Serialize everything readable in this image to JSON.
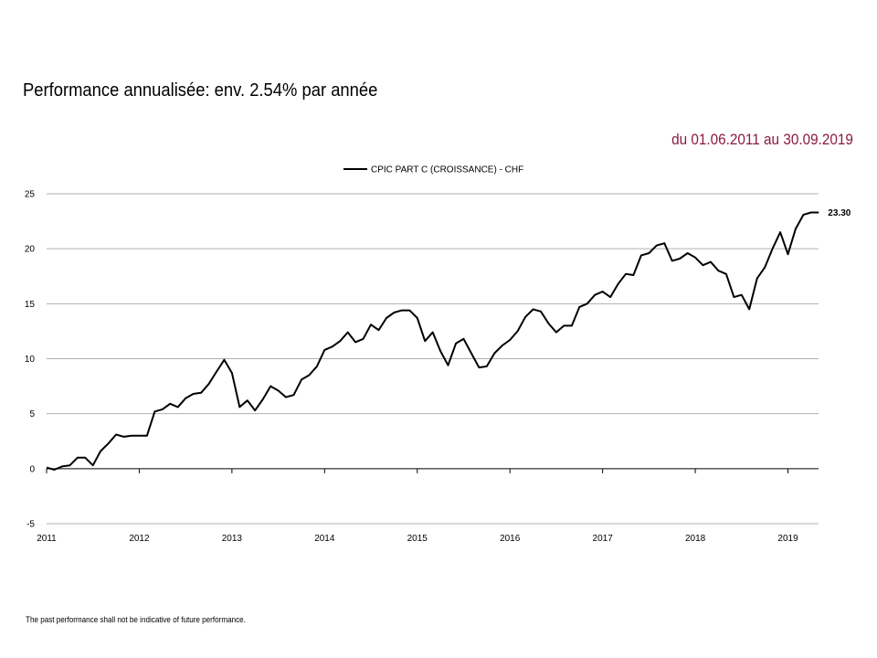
{
  "header": {
    "title": "Performance annualisée: env. 2.54% par année",
    "period": "du 01.06.2011 au 30.09.2019"
  },
  "footer": {
    "disclaimer": "The past performance shall not be indicative of future performance."
  },
  "colors": {
    "period_text": "#8b1a3c",
    "series_line": "#000000",
    "gridline": "#b0b0b0"
  },
  "chart_data": {
    "type": "line",
    "title": "",
    "xlabel": "",
    "ylabel": "",
    "legend": {
      "placement": "top-center",
      "entries": [
        "CPIC PART C (CROISSANCE) - CHF"
      ]
    },
    "ylim": [
      -5,
      25
    ],
    "yticks": [
      "-5",
      "0",
      "5",
      "10",
      "15",
      "20",
      "25"
    ],
    "xlim": [
      2011.0,
      2019.33
    ],
    "xticks": [
      "2011",
      "2012",
      "2013",
      "2014",
      "2015",
      "2016",
      "2017",
      "2018",
      "2019"
    ],
    "grid": "horizontal",
    "end_label": "23.30",
    "series": [
      {
        "name": "CPIC PART C (CROISSANCE) - CHF",
        "x": [
          2011.0,
          2011.083,
          2011.167,
          2011.25,
          2011.333,
          2011.417,
          2011.5,
          2011.583,
          2011.667,
          2011.75,
          2011.833,
          2011.917,
          2012.0,
          2012.083,
          2012.167,
          2012.25,
          2012.333,
          2012.417,
          2012.5,
          2012.583,
          2012.667,
          2012.75,
          2012.833,
          2012.917,
          2013.0,
          2013.083,
          2013.167,
          2013.25,
          2013.333,
          2013.417,
          2013.5,
          2013.583,
          2013.667,
          2013.75,
          2013.833,
          2013.917,
          2014.0,
          2014.083,
          2014.167,
          2014.25,
          2014.333,
          2014.417,
          2014.5,
          2014.583,
          2014.667,
          2014.75,
          2014.833,
          2014.917,
          2015.0,
          2015.083,
          2015.167,
          2015.25,
          2015.333,
          2015.417,
          2015.5,
          2015.583,
          2015.667,
          2015.75,
          2015.833,
          2015.917,
          2016.0,
          2016.083,
          2016.167,
          2016.25,
          2016.333,
          2016.417,
          2016.5,
          2016.583,
          2016.667,
          2016.75,
          2016.833,
          2016.917,
          2017.0,
          2017.083,
          2017.167,
          2017.25,
          2017.333,
          2017.417,
          2017.5,
          2017.583,
          2017.667,
          2017.75,
          2017.833,
          2017.917,
          2018.0,
          2018.083,
          2018.167,
          2018.25,
          2018.333,
          2018.417,
          2018.5,
          2018.583,
          2018.667,
          2018.75,
          2018.833,
          2018.917,
          2019.0,
          2019.083,
          2019.167,
          2019.25,
          2019.333
        ],
        "values": [
          0.1,
          -0.1,
          0.2,
          0.3,
          1.0,
          1.0,
          0.3,
          1.6,
          2.3,
          3.1,
          2.9,
          3.0,
          3.0,
          3.0,
          5.2,
          5.4,
          5.9,
          5.6,
          6.4,
          6.8,
          6.9,
          7.7,
          8.8,
          9.9,
          8.7,
          5.6,
          6.2,
          5.3,
          6.3,
          7.5,
          7.1,
          6.5,
          6.7,
          8.1,
          8.5,
          9.3,
          10.8,
          11.1,
          11.6,
          12.4,
          11.5,
          11.8,
          13.1,
          12.6,
          13.7,
          14.2,
          14.4,
          14.4,
          13.7,
          11.6,
          12.4,
          10.7,
          9.4,
          11.4,
          11.8,
          10.5,
          9.2,
          9.3,
          10.5,
          11.2,
          11.7,
          12.5,
          13.8,
          14.5,
          14.3,
          13.2,
          12.4,
          13.0,
          13.0,
          14.7,
          15.0,
          15.8,
          16.1,
          15.6,
          16.8,
          17.7,
          17.6,
          19.4,
          19.6,
          20.3,
          20.5,
          18.9,
          19.1,
          19.6,
          19.2,
          18.5,
          18.8,
          18.0,
          17.7,
          15.6,
          15.8,
          14.5,
          17.3,
          18.3,
          20.0,
          21.5,
          19.5,
          21.8,
          23.1,
          23.3,
          23.3
        ]
      }
    ]
  }
}
